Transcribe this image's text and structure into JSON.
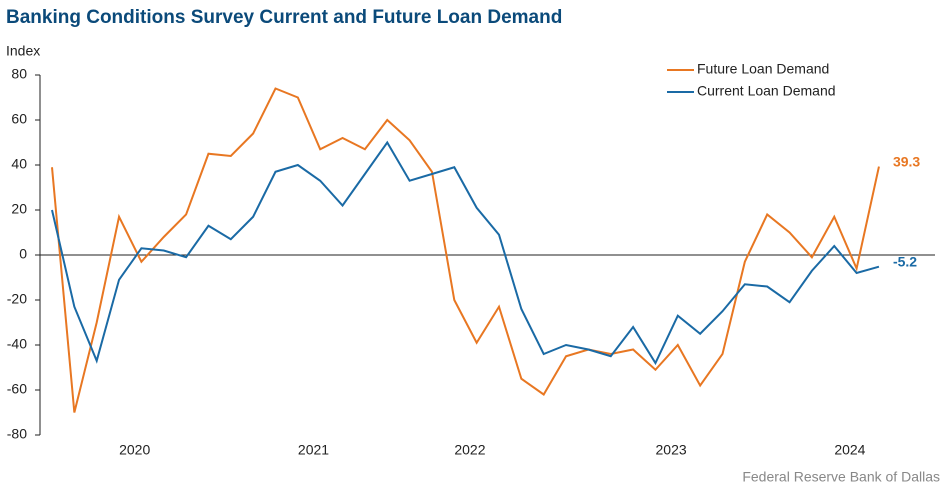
{
  "chart_data": {
    "type": "line",
    "title": "Banking Conditions Survey Current and Future Loan Demand",
    "y_label": "Index",
    "source": "Federal Reserve Bank of Dallas",
    "categories": [
      null,
      null,
      null,
      null,
      "2020",
      null,
      null,
      null,
      null,
      null,
      null,
      null,
      "2021",
      null,
      null,
      null,
      null,
      null,
      null,
      "2022",
      null,
      null,
      null,
      null,
      null,
      null,
      null,
      null,
      "2023",
      null,
      null,
      null,
      null,
      null,
      null,
      null,
      "2024",
      null
    ],
    "series": [
      {
        "name": "Future Loan Demand",
        "color": "#e87722",
        "values": [
          39,
          -70,
          -30,
          17,
          -3,
          8,
          18,
          45,
          44,
          54,
          74,
          70,
          47,
          52,
          47,
          60,
          51,
          37,
          -20,
          -39,
          -23,
          -55,
          -62,
          -45,
          -42,
          -44,
          -42,
          -51,
          -40,
          -58,
          -44,
          -3,
          18,
          10,
          -1,
          17,
          -6,
          39.3
        ]
      },
      {
        "name": "Current Loan Demand",
        "color": "#1a6aa5",
        "values": [
          20,
          -23,
          -47,
          -11,
          3,
          2,
          -1,
          13,
          7,
          17,
          37,
          40,
          33,
          22,
          36,
          50,
          33,
          36,
          39,
          21,
          9,
          -24,
          -44,
          -40,
          -42,
          -45,
          -32,
          -48,
          -27,
          -35,
          -25,
          -13,
          -14,
          -21,
          -7,
          4,
          -8,
          -5.2
        ]
      }
    ],
    "ylim": [
      -80,
      80
    ],
    "yticks": [
      -80,
      -60,
      -40,
      -20,
      0,
      20,
      40,
      60,
      80
    ],
    "legend": "top-right",
    "grid": false
  }
}
